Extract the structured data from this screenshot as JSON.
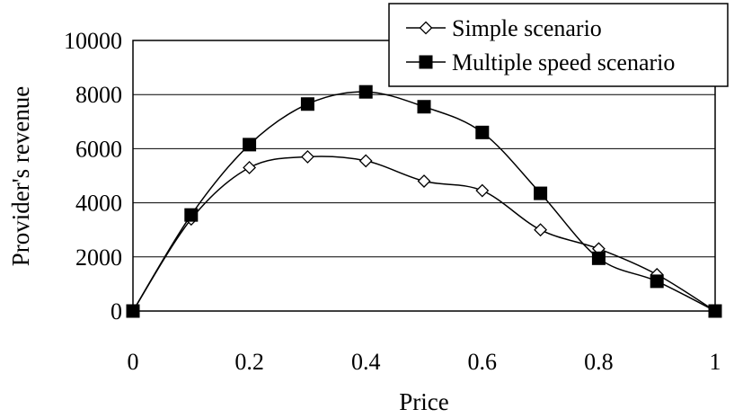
{
  "chart_data": {
    "type": "line",
    "xlabel": "Price",
    "ylabel": "Provider's revenue",
    "xlim": [
      0,
      1
    ],
    "ylim": [
      0,
      10000
    ],
    "x_ticks": [
      "0",
      "0.2",
      "0.4",
      "0.6",
      "0.8",
      "1"
    ],
    "y_ticks": [
      "0",
      "2000",
      "4000",
      "6000",
      "8000",
      "10000"
    ],
    "grid": "horizontal",
    "legend_position": "top-right",
    "x": [
      0,
      0.1,
      0.2,
      0.3,
      0.4,
      0.5,
      0.6,
      0.7,
      0.8,
      0.9,
      1.0
    ],
    "series": [
      {
        "name": "Simple scenario",
        "marker": "open-diamond",
        "values": [
          0,
          3400,
          5300,
          5700,
          5550,
          4800,
          4450,
          3000,
          2300,
          1350,
          0
        ]
      },
      {
        "name": "Multiple speed scenario",
        "marker": "filled-square",
        "values": [
          0,
          3550,
          6150,
          7650,
          8100,
          7550,
          6600,
          4350,
          1950,
          1100,
          0
        ]
      }
    ]
  }
}
